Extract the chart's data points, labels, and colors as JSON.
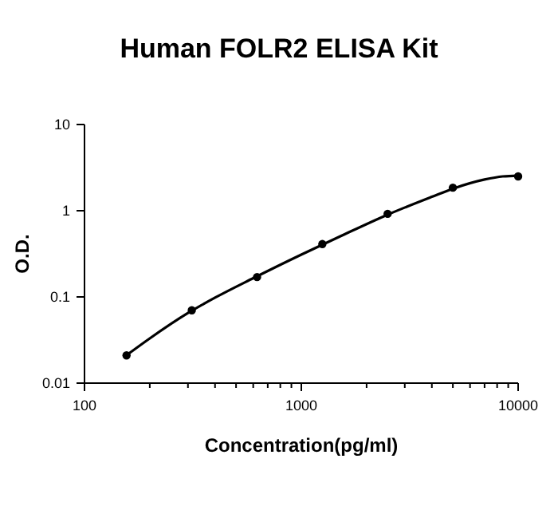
{
  "chart_data": {
    "type": "scatter",
    "title": "Human FOLR2 ELISA Kit",
    "xlabel": "Concentration(pg/ml)",
    "ylabel": "O.D.",
    "log": "xy",
    "xlim": [
      100,
      10000
    ],
    "ylim": [
      0.01,
      10
    ],
    "xticks": [
      100,
      {
        "value": 200,
        "label": null
      },
      {
        "value": 300,
        "label": null
      },
      {
        "value": 400,
        "label": null
      },
      {
        "value": 500,
        "label": null
      },
      {
        "value": 600,
        "label": null
      },
      {
        "value": 700,
        "label": null
      },
      {
        "value": 800,
        "label": null
      },
      {
        "value": 900,
        "label": null
      },
      1000,
      {
        "value": 2000,
        "label": null
      },
      {
        "value": 3000,
        "label": null
      },
      {
        "value": 4000,
        "label": null
      },
      {
        "value": 5000,
        "label": null
      },
      {
        "value": 6000,
        "label": null
      },
      {
        "value": 7000,
        "label": null
      },
      {
        "value": 8000,
        "label": null
      },
      {
        "value": 9000,
        "label": null
      },
      10000
    ],
    "yticks": [
      0.01,
      0.1,
      1,
      10
    ],
    "grid": false,
    "series": [
      {
        "color": "#000000",
        "marker": "circle",
        "x": [
          156.25,
          312.5,
          625,
          1250,
          2500,
          5000,
          10000
        ],
        "values": [
          0.021,
          0.07,
          0.17,
          0.41,
          0.92,
          1.85,
          2.5
        ]
      },
      {
        "type": "line",
        "color": "#000000",
        "marker": "none",
        "line_style": "solid",
        "x": [
          160,
          200,
          300,
          400,
          600,
          1000,
          1500,
          2500,
          4000,
          5000,
          7000,
          8500,
          10000
        ],
        "values": [
          0.022,
          0.033,
          0.065,
          0.098,
          0.165,
          0.31,
          0.5,
          0.9,
          1.45,
          1.8,
          2.3,
          2.5,
          2.55
        ]
      }
    ]
  }
}
